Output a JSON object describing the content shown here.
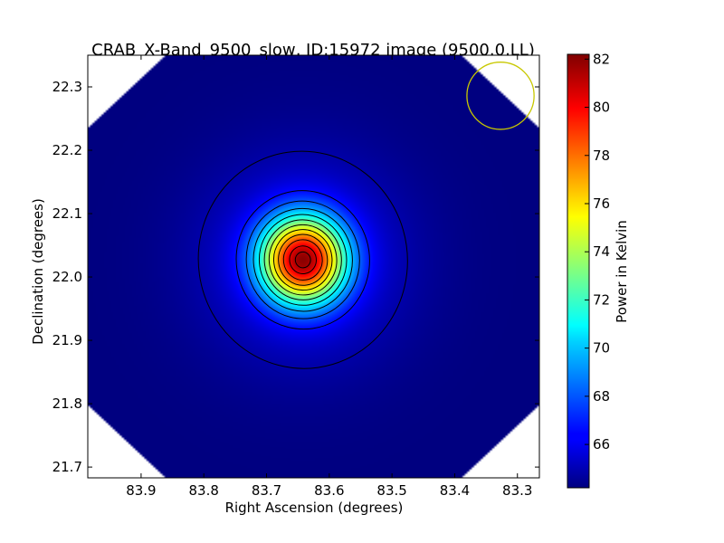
{
  "chart_data": {
    "type": "heatmap",
    "title": "CRAB_X-Band_9500_slow, ID:15972 image (9500.0,LL)",
    "xlabel": "Right Ascension (degrees)",
    "ylabel": "Declination (degrees)",
    "xlim": [
      83.985,
      83.265
    ],
    "ylim": [
      21.683,
      22.35
    ],
    "x_ticks": [
      83.9,
      83.8,
      83.7,
      83.6,
      83.5,
      83.4,
      83.3
    ],
    "x_tick_labels": [
      "83.9",
      "83.8",
      "83.7",
      "83.6",
      "83.5",
      "83.4",
      "83.3"
    ],
    "y_ticks": [
      21.7,
      21.8,
      21.9,
      22.0,
      22.1,
      22.2,
      22.3
    ],
    "y_tick_labels": [
      "21.7",
      "21.8",
      "21.9",
      "22.0",
      "22.1",
      "22.2",
      "22.3"
    ],
    "colorbar": {
      "label": "Power in Kelvin",
      "colormap": "jet",
      "vmin": 64.2,
      "vmax": 82.2,
      "ticks": [
        66,
        68,
        70,
        72,
        74,
        76,
        78,
        80,
        82
      ],
      "tick_labels": [
        "66",
        "68",
        "70",
        "72",
        "74",
        "76",
        "78",
        "80",
        "82"
      ]
    },
    "source": {
      "ra": 83.642,
      "dec": 22.027,
      "peak": 82.0,
      "background": 64.2
    },
    "contour_levels": [
      65,
      67,
      68.5,
      70,
      71.5,
      73,
      74.5,
      76,
      77.5,
      79,
      80.5,
      81.5
    ],
    "beam_circle": {
      "ra": 83.327,
      "dec": 22.286,
      "radius_deg": 0.053,
      "color": "#c8c800"
    },
    "image_mask": "diamond (corners cut, white)",
    "grid": false
  }
}
